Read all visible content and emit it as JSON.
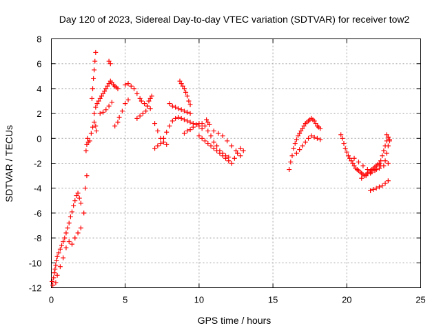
{
  "chart_data": {
    "type": "scatter",
    "title": "Day 120 of 2023, Sidereal Day-to-day VTEC variation (SDTVAR) for receiver tow2",
    "xlabel": "GPS time / hours",
    "ylabel": "SDTVAR / TECUs",
    "xlim": [
      0,
      25
    ],
    "ylim": [
      -12,
      8
    ],
    "xticks": [
      0,
      5,
      10,
      15,
      20,
      25
    ],
    "yticks": [
      -12,
      -10,
      -8,
      -6,
      -4,
      -2,
      0,
      2,
      4,
      6,
      8
    ],
    "grid": true,
    "marker": "plus",
    "color": "#ff0000",
    "series": [
      {
        "name": "SDTVAR",
        "x": [
          0.05,
          0.1,
          0.15,
          0.2,
          0.25,
          0.3,
          0.35,
          0.4,
          0.5,
          0.6,
          0.7,
          0.8,
          0.9,
          1.0,
          1.1,
          1.2,
          1.3,
          1.4,
          1.5,
          1.6,
          1.7,
          1.8,
          1.9,
          2.0,
          0.3,
          0.4,
          0.6,
          0.8,
          1.0,
          1.2,
          1.4,
          1.6,
          1.8,
          2.0,
          2.2,
          2.3,
          2.4,
          2.35,
          2.4,
          2.45,
          2.5,
          2.6,
          2.7,
          2.8,
          2.9,
          3.0,
          3.05,
          2.75,
          2.8,
          2.85,
          2.9,
          2.95,
          3.0,
          2.9,
          3.0,
          3.1,
          3.2,
          3.3,
          3.4,
          3.5,
          3.6,
          3.7,
          3.8,
          3.9,
          4.0,
          4.1,
          4.2,
          4.3,
          4.4,
          4.5,
          3.3,
          3.5,
          3.7,
          3.9,
          4.1,
          3.9,
          4.0,
          4.3,
          4.5,
          4.6,
          4.8,
          5.0,
          5.2,
          5.0,
          5.2,
          5.4,
          5.6,
          5.8,
          6.0,
          6.1,
          6.3,
          6.5,
          6.7,
          5.8,
          6.0,
          6.2,
          6.4,
          6.5,
          6.6,
          6.7,
          6.8,
          7.0,
          7.2,
          7.4,
          7.6,
          7.8,
          7.0,
          7.2,
          7.4,
          7.6,
          7.8,
          8.0,
          8.2,
          8.4,
          8.6,
          8.8,
          9.0,
          9.2,
          9.4,
          9.6,
          9.8,
          10.0,
          10.2,
          8.0,
          8.2,
          8.4,
          8.6,
          8.8,
          9.0,
          9.2,
          9.4,
          8.7,
          8.8,
          8.9,
          9.0,
          9.1,
          9.2,
          9.3,
          9.4,
          9.0,
          9.2,
          9.4,
          9.6,
          9.8,
          10.0,
          10.2,
          10.4,
          10.6,
          10.8,
          11.0,
          11.2,
          11.4,
          11.6,
          11.8,
          12.0,
          10.0,
          10.2,
          10.4,
          10.6,
          10.8,
          11.0,
          11.2,
          11.4,
          11.6,
          11.8,
          12.0,
          12.2,
          12.4,
          12.6,
          12.8,
          13.0,
          10.5,
          10.6,
          10.7,
          11.0,
          11.3,
          11.6,
          11.9,
          12.2,
          12.5,
          12.8,
          16.1,
          16.2,
          16.3,
          16.4,
          16.5,
          16.6,
          16.7,
          16.8,
          16.9,
          17.0,
          17.1,
          17.2,
          17.3,
          17.4,
          17.5,
          17.6,
          17.7,
          17.8,
          17.9,
          18.0,
          18.1,
          18.2,
          16.6,
          16.8,
          17.0,
          17.2,
          17.4,
          17.6,
          17.8,
          18.0,
          18.2,
          19.6,
          19.7,
          19.8,
          19.9,
          20.0,
          20.1,
          20.2,
          20.3,
          20.4,
          20.5,
          20.6,
          20.7,
          20.8,
          20.9,
          21.0,
          21.1,
          21.2,
          21.3,
          21.4,
          21.5,
          21.6,
          21.7,
          21.8,
          21.9,
          22.0,
          22.1,
          22.2,
          22.3,
          22.4,
          22.5,
          22.6,
          22.7,
          22.8,
          20.5,
          20.8,
          21.1,
          21.4,
          21.7,
          22.0,
          22.3,
          22.6,
          22.7,
          22.8,
          22.9,
          22.7,
          22.8,
          22.9,
          21.0,
          21.3,
          21.6,
          21.9,
          22.2,
          22.5,
          22.8,
          21.6,
          21.8,
          22.0,
          22.2,
          22.4,
          22.6,
          22.8
        ],
        "y": [
          -11.5,
          -11.8,
          -11.2,
          -10.8,
          -10.5,
          -10.2,
          -9.8,
          -9.5,
          -9.2,
          -8.9,
          -8.6,
          -8.3,
          -8.0,
          -7.6,
          -7.2,
          -6.8,
          -6.3,
          -5.9,
          -5.4,
          -5.0,
          -4.6,
          -4.4,
          -4.8,
          -5.2,
          -11.6,
          -11.0,
          -10.3,
          -9.6,
          -8.8,
          -8.3,
          -8.5,
          -8.0,
          -7.6,
          -7.2,
          -6.0,
          -4.0,
          -3.0,
          -1.0,
          -0.5,
          0.0,
          -0.3,
          -0.2,
          0.4,
          0.9,
          1.3,
          1.0,
          0.6,
          3.2,
          4.0,
          4.8,
          5.5,
          6.2,
          6.9,
          2.0,
          2.5,
          2.8,
          3.0,
          3.2,
          3.4,
          3.6,
          3.8,
          4.0,
          4.2,
          4.4,
          4.6,
          4.5,
          4.3,
          4.2,
          4.1,
          4.0,
          2.0,
          2.1,
          2.3,
          2.6,
          2.9,
          6.2,
          6.0,
          1.0,
          1.3,
          1.7,
          2.2,
          2.8,
          3.1,
          4.3,
          4.4,
          4.2,
          4.0,
          3.6,
          3.2,
          3.0,
          2.8,
          2.6,
          2.4,
          1.6,
          1.8,
          2.0,
          2.2,
          2.6,
          3.0,
          3.2,
          3.4,
          1.2,
          0.6,
          0.0,
          -0.3,
          -0.5,
          -0.8,
          -0.6,
          -0.4,
          0.0,
          0.5,
          1.0,
          1.4,
          1.6,
          1.7,
          1.6,
          1.5,
          1.4,
          1.3,
          1.2,
          1.1,
          1.0,
          0.8,
          2.8,
          2.6,
          2.5,
          2.4,
          2.3,
          2.2,
          2.1,
          2.0,
          4.6,
          4.4,
          4.2,
          4.0,
          3.7,
          3.4,
          3.0,
          2.7,
          0.4,
          0.6,
          0.7,
          0.9,
          1.1,
          1.2,
          1.2,
          1.0,
          0.6,
          0.2,
          -0.3,
          -0.6,
          -1.0,
          -1.2,
          -1.4,
          -1.5,
          0.2,
          0.0,
          -0.2,
          -0.4,
          -0.6,
          -0.8,
          -1.0,
          -1.2,
          -1.4,
          -1.6,
          -1.8,
          -2.0,
          -1.6,
          -1.2,
          -0.8,
          -1.0,
          1.5,
          1.3,
          1.1,
          0.6,
          0.4,
          0.2,
          -0.2,
          -0.6,
          -1.0,
          -1.4,
          -2.5,
          -1.9,
          -1.4,
          -0.8,
          -0.4,
          -0.1,
          0.2,
          0.4,
          0.6,
          0.8,
          1.0,
          1.2,
          1.3,
          1.4,
          1.5,
          1.6,
          1.5,
          1.4,
          1.2,
          1.0,
          0.9,
          0.8,
          -1.2,
          -0.9,
          -0.6,
          -0.3,
          0.0,
          0.2,
          0.1,
          0.0,
          -0.1,
          0.3,
          0.0,
          -0.4,
          -0.8,
          -1.1,
          -1.4,
          -1.6,
          -1.8,
          -2.0,
          -2.2,
          -2.4,
          -2.5,
          -2.6,
          -2.7,
          -2.8,
          -2.9,
          -3.0,
          -2.9,
          -2.8,
          -2.7,
          -2.6,
          -2.5,
          -2.4,
          -2.3,
          -2.2,
          -2.1,
          -2.0,
          -1.8,
          -1.4,
          -1.0,
          -0.6,
          -0.2,
          0.1,
          -1.6,
          -1.9,
          -2.2,
          -2.5,
          -2.7,
          -2.5,
          -2.2,
          -1.8,
          -1.2,
          -0.6,
          -0.2,
          0.3,
          0.1,
          -0.1,
          -3.2,
          -3.0,
          -2.8,
          -2.6,
          -2.4,
          -2.2,
          -2.0,
          -4.2,
          -4.1,
          -4.0,
          -3.9,
          -3.8,
          -3.6,
          -3.4
        ]
      }
    ]
  }
}
